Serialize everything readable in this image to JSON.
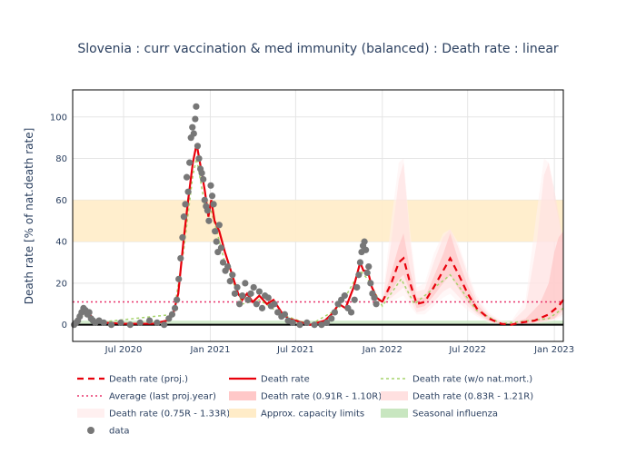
{
  "chart_data": {
    "type": "line",
    "title": "Slovenia : curr vaccination & med immunity (balanced) : Death rate : linear",
    "xlabel": "",
    "ylabel": "Death rate [% of nat.death rate]",
    "x_range": [
      "2020-03-15",
      "2023-01-20"
    ],
    "y_range": [
      -8,
      113
    ],
    "x_ticks": [
      {
        "date": "2020-07-01",
        "label": "Jul 2020"
      },
      {
        "date": "2021-01-01",
        "label": "Jan 2021"
      },
      {
        "date": "2021-07-01",
        "label": "Jul 2021"
      },
      {
        "date": "2022-01-01",
        "label": "Jan 2022"
      },
      {
        "date": "2022-07-01",
        "label": "Jul 2022"
      },
      {
        "date": "2023-01-01",
        "label": "Jan 2023"
      }
    ],
    "y_ticks": [
      0,
      20,
      40,
      60,
      80,
      100
    ],
    "grid": true,
    "capacity_band": [
      40,
      60
    ],
    "average_last_proj_year": 11,
    "colors": {
      "proj": "#e8000b",
      "rate": "#e8000b",
      "wo_nat": "#a5d36b",
      "average": "#e8336b",
      "band_091": "#ffc8c8",
      "band_083": "#ffe0e0",
      "band_075": "#fff0f0",
      "capacity": "#ffecc8",
      "influenza": "#c8e6c0",
      "data": "#777777"
    },
    "series": [
      {
        "name": "Death rate",
        "points": [
          [
            "2020-03-15",
            0
          ],
          [
            "2020-03-28",
            3
          ],
          [
            "2020-04-08",
            6
          ],
          [
            "2020-04-20",
            5
          ],
          [
            "2020-05-01",
            2
          ],
          [
            "2020-05-20",
            1
          ],
          [
            "2020-07-01",
            0.5
          ],
          [
            "2020-09-01",
            0.5
          ],
          [
            "2020-10-01",
            2
          ],
          [
            "2020-10-15",
            6
          ],
          [
            "2020-10-25",
            15
          ],
          [
            "2020-11-05",
            40
          ],
          [
            "2020-11-15",
            60
          ],
          [
            "2020-11-25",
            78
          ],
          [
            "2020-12-03",
            87
          ],
          [
            "2020-12-10",
            78
          ],
          [
            "2020-12-20",
            65
          ],
          [
            "2020-12-28",
            52
          ],
          [
            "2021-01-03",
            60
          ],
          [
            "2021-01-10",
            50
          ],
          [
            "2021-01-20",
            45
          ],
          [
            "2021-02-01",
            35
          ],
          [
            "2021-02-15",
            25
          ],
          [
            "2021-03-01",
            15
          ],
          [
            "2021-03-10",
            12
          ],
          [
            "2021-03-20",
            15
          ],
          [
            "2021-04-01",
            11
          ],
          [
            "2021-04-15",
            14
          ],
          [
            "2021-05-01",
            10
          ],
          [
            "2021-05-15",
            12
          ],
          [
            "2021-06-01",
            6
          ],
          [
            "2021-06-15",
            3
          ],
          [
            "2021-07-01",
            2
          ],
          [
            "2021-07-15",
            1
          ],
          [
            "2021-08-01",
            0
          ],
          [
            "2021-09-01",
            2
          ],
          [
            "2021-09-15",
            5
          ],
          [
            "2021-10-01",
            10
          ],
          [
            "2021-10-15",
            8
          ],
          [
            "2021-11-01",
            18
          ],
          [
            "2021-11-15",
            30
          ],
          [
            "2021-11-22",
            26
          ],
          [
            "2021-12-01",
            26
          ],
          [
            "2021-12-10",
            18
          ],
          [
            "2021-12-20",
            13
          ],
          [
            "2022-01-01",
            11
          ]
        ]
      },
      {
        "name": "Death rate (proj.)",
        "points": [
          [
            "2022-01-01",
            11
          ],
          [
            "2022-01-20",
            20
          ],
          [
            "2022-02-05",
            30
          ],
          [
            "2022-02-15",
            32
          ],
          [
            "2022-03-01",
            20
          ],
          [
            "2022-03-15",
            10
          ],
          [
            "2022-04-01",
            11
          ],
          [
            "2022-04-20",
            18
          ],
          [
            "2022-05-10",
            26
          ],
          [
            "2022-05-25",
            32
          ],
          [
            "2022-06-10",
            25
          ],
          [
            "2022-07-01",
            15
          ],
          [
            "2022-07-20",
            8
          ],
          [
            "2022-08-15",
            3
          ],
          [
            "2022-09-10",
            0.5
          ],
          [
            "2022-10-01",
            0
          ],
          [
            "2022-10-20",
            1
          ],
          [
            "2022-11-20",
            2
          ],
          [
            "2022-12-20",
            5
          ],
          [
            "2023-01-10",
            9
          ],
          [
            "2023-01-20",
            12
          ]
        ]
      },
      {
        "name": "Death rate (w/o nat.mort.)",
        "points": [
          [
            "2020-03-15",
            0
          ],
          [
            "2020-04-08",
            5
          ],
          [
            "2020-05-01",
            1
          ],
          [
            "2020-10-15",
            5
          ],
          [
            "2020-11-05",
            35
          ],
          [
            "2020-11-25",
            72
          ],
          [
            "2020-12-03",
            80
          ],
          [
            "2020-12-20",
            58
          ],
          [
            "2021-01-03",
            55
          ],
          [
            "2021-02-01",
            30
          ],
          [
            "2021-03-10",
            10
          ],
          [
            "2021-04-15",
            12
          ],
          [
            "2021-06-01",
            5
          ],
          [
            "2021-08-01",
            0
          ],
          [
            "2021-10-01",
            8
          ],
          [
            "2021-11-15",
            26
          ],
          [
            "2021-12-01",
            22
          ],
          [
            "2022-01-01",
            9
          ],
          [
            "2022-02-10",
            22
          ],
          [
            "2022-03-10",
            10
          ],
          [
            "2022-05-25",
            24
          ],
          [
            "2022-07-20",
            7
          ],
          [
            "2022-09-10",
            0.5
          ],
          [
            "2022-12-20",
            3
          ],
          [
            "2023-01-20",
            8
          ]
        ]
      }
    ],
    "bands": [
      {
        "name": "Death rate (0.91R - 1.10R)",
        "points": [
          [
            "2022-01-01",
            11,
            11
          ],
          [
            "2022-01-20",
            16,
            25
          ],
          [
            "2022-02-05",
            22,
            38
          ],
          [
            "2022-02-15",
            24,
            44
          ],
          [
            "2022-03-01",
            16,
            26
          ],
          [
            "2022-03-15",
            8,
            13
          ],
          [
            "2022-04-01",
            9,
            13
          ],
          [
            "2022-04-20",
            14,
            23
          ],
          [
            "2022-05-10",
            20,
            34
          ],
          [
            "2022-05-25",
            24,
            44
          ],
          [
            "2022-06-10",
            18,
            32
          ],
          [
            "2022-07-01",
            11,
            19
          ],
          [
            "2022-07-20",
            6,
            10
          ],
          [
            "2022-08-15",
            2,
            4
          ],
          [
            "2022-09-10",
            0.3,
            1
          ],
          [
            "2022-10-01",
            0,
            0.5
          ],
          [
            "2022-11-01",
            0.5,
            3
          ],
          [
            "2022-12-01",
            1.5,
            10
          ],
          [
            "2022-12-20",
            2.5,
            20
          ],
          [
            "2023-01-01",
            3,
            35
          ],
          [
            "2023-01-10",
            5,
            42
          ],
          [
            "2023-01-20",
            7,
            45
          ]
        ]
      },
      {
        "name": "Death rate (0.83R - 1.21R)",
        "points": [
          [
            "2022-01-01",
            11,
            11
          ],
          [
            "2022-01-20",
            13,
            40
          ],
          [
            "2022-02-05",
            16,
            70
          ],
          [
            "2022-02-15",
            18,
            78
          ],
          [
            "2022-03-01",
            12,
            40
          ],
          [
            "2022-03-15",
            6,
            16
          ],
          [
            "2022-04-01",
            7,
            17
          ],
          [
            "2022-04-20",
            11,
            30
          ],
          [
            "2022-05-10",
            16,
            42
          ],
          [
            "2022-05-25",
            18,
            46
          ],
          [
            "2022-06-10",
            14,
            38
          ],
          [
            "2022-07-01",
            9,
            24
          ],
          [
            "2022-07-20",
            5,
            12
          ],
          [
            "2022-08-15",
            1.5,
            5
          ],
          [
            "2022-09-10",
            0.2,
            1.5
          ],
          [
            "2022-10-01",
            0,
            1
          ],
          [
            "2022-11-01",
            0.4,
            8
          ],
          [
            "2022-11-25",
            1,
            40
          ],
          [
            "2022-12-10",
            1.5,
            72
          ],
          [
            "2022-12-20",
            2,
            78
          ],
          [
            "2023-01-01",
            3,
            65
          ],
          [
            "2023-01-20",
            5,
            40
          ]
        ]
      },
      {
        "name": "Death rate (0.75R - 1.33R)",
        "points": [
          [
            "2022-01-01",
            11,
            11
          ],
          [
            "2022-01-20",
            11,
            50
          ],
          [
            "2022-02-05",
            13,
            78
          ],
          [
            "2022-02-15",
            14,
            80
          ],
          [
            "2022-03-01",
            9,
            45
          ],
          [
            "2022-03-15",
            5,
            18
          ],
          [
            "2022-04-01",
            5,
            20
          ],
          [
            "2022-04-20",
            9,
            34
          ],
          [
            "2022-05-10",
            13,
            44
          ],
          [
            "2022-05-25",
            15,
            46
          ],
          [
            "2022-06-10",
            11,
            40
          ],
          [
            "2022-07-01",
            7,
            26
          ],
          [
            "2022-07-20",
            4,
            14
          ],
          [
            "2022-08-15",
            1,
            6
          ],
          [
            "2022-09-10",
            0.1,
            2
          ],
          [
            "2022-10-01",
            0,
            1.5
          ],
          [
            "2022-11-01",
            0.3,
            12
          ],
          [
            "2022-11-25",
            0.8,
            55
          ],
          [
            "2022-12-10",
            1.2,
            80
          ],
          [
            "2022-12-20",
            1.5,
            78
          ],
          [
            "2023-01-01",
            2,
            60
          ],
          [
            "2023-01-20",
            4,
            40
          ]
        ]
      }
    ],
    "data_points": [
      [
        "2020-03-18",
        0
      ],
      [
        "2020-03-22",
        1
      ],
      [
        "2020-03-26",
        2
      ],
      [
        "2020-03-30",
        4
      ],
      [
        "2020-04-03",
        6
      ],
      [
        "2020-04-07",
        8
      ],
      [
        "2020-04-11",
        7
      ],
      [
        "2020-04-15",
        5
      ],
      [
        "2020-04-19",
        6
      ],
      [
        "2020-04-23",
        3
      ],
      [
        "2020-04-27",
        2
      ],
      [
        "2020-05-02",
        1
      ],
      [
        "2020-05-10",
        2
      ],
      [
        "2020-05-20",
        1
      ],
      [
        "2020-06-05",
        0
      ],
      [
        "2020-06-25",
        1
      ],
      [
        "2020-07-15",
        0
      ],
      [
        "2020-08-05",
        1
      ],
      [
        "2020-08-25",
        2
      ],
      [
        "2020-09-10",
        1
      ],
      [
        "2020-09-25",
        0
      ],
      [
        "2020-10-05",
        3
      ],
      [
        "2020-10-12",
        5
      ],
      [
        "2020-10-18",
        8
      ],
      [
        "2020-10-22",
        12
      ],
      [
        "2020-10-26",
        22
      ],
      [
        "2020-10-30",
        32
      ],
      [
        "2020-11-03",
        42
      ],
      [
        "2020-11-06",
        52
      ],
      [
        "2020-11-09",
        58
      ],
      [
        "2020-11-12",
        71
      ],
      [
        "2020-11-15",
        64
      ],
      [
        "2020-11-18",
        78
      ],
      [
        "2020-11-21",
        90
      ],
      [
        "2020-11-24",
        95
      ],
      [
        "2020-11-27",
        92
      ],
      [
        "2020-11-30",
        99
      ],
      [
        "2020-12-02",
        105
      ],
      [
        "2020-12-05",
        86
      ],
      [
        "2020-12-08",
        80
      ],
      [
        "2020-12-11",
        75
      ],
      [
        "2020-12-14",
        73
      ],
      [
        "2020-12-17",
        70
      ],
      [
        "2020-12-20",
        60
      ],
      [
        "2020-12-23",
        57
      ],
      [
        "2020-12-26",
        55
      ],
      [
        "2020-12-29",
        50
      ],
      [
        "2021-01-02",
        67
      ],
      [
        "2021-01-05",
        62
      ],
      [
        "2021-01-08",
        58
      ],
      [
        "2021-01-11",
        45
      ],
      [
        "2021-01-14",
        40
      ],
      [
        "2021-01-17",
        35
      ],
      [
        "2021-01-20",
        48
      ],
      [
        "2021-01-24",
        37
      ],
      [
        "2021-01-28",
        30
      ],
      [
        "2021-02-02",
        26
      ],
      [
        "2021-02-07",
        28
      ],
      [
        "2021-02-12",
        21
      ],
      [
        "2021-02-17",
        24
      ],
      [
        "2021-02-22",
        15
      ],
      [
        "2021-02-27",
        18
      ],
      [
        "2021-03-04",
        10
      ],
      [
        "2021-03-10",
        14
      ],
      [
        "2021-03-16",
        20
      ],
      [
        "2021-03-22",
        12
      ],
      [
        "2021-03-28",
        15
      ],
      [
        "2021-04-03",
        18
      ],
      [
        "2021-04-09",
        10
      ],
      [
        "2021-04-15",
        16
      ],
      [
        "2021-04-21",
        8
      ],
      [
        "2021-04-27",
        14
      ],
      [
        "2021-05-04",
        13
      ],
      [
        "2021-05-10",
        9
      ],
      [
        "2021-05-17",
        10
      ],
      [
        "2021-05-24",
        6
      ],
      [
        "2021-06-01",
        4
      ],
      [
        "2021-06-08",
        5
      ],
      [
        "2021-06-15",
        2
      ],
      [
        "2021-06-25",
        1
      ],
      [
        "2021-07-10",
        0
      ],
      [
        "2021-07-25",
        1
      ],
      [
        "2021-08-10",
        0
      ],
      [
        "2021-08-25",
        0
      ],
      [
        "2021-09-05",
        1
      ],
      [
        "2021-09-15",
        3
      ],
      [
        "2021-09-22",
        6
      ],
      [
        "2021-09-29",
        10
      ],
      [
        "2021-10-06",
        12
      ],
      [
        "2021-10-13",
        14
      ],
      [
        "2021-10-20",
        8
      ],
      [
        "2021-10-27",
        6
      ],
      [
        "2021-11-03",
        12
      ],
      [
        "2021-11-08",
        18
      ],
      [
        "2021-11-12",
        24
      ],
      [
        "2021-11-15",
        30
      ],
      [
        "2021-11-18",
        35
      ],
      [
        "2021-11-21",
        38
      ],
      [
        "2021-11-24",
        40
      ],
      [
        "2021-11-27",
        36
      ],
      [
        "2021-11-30",
        25
      ],
      [
        "2021-12-03",
        28
      ],
      [
        "2021-12-07",
        20
      ],
      [
        "2021-12-11",
        15
      ],
      [
        "2021-12-15",
        13
      ],
      [
        "2021-12-19",
        10
      ]
    ],
    "legend": [
      {
        "label": "Death rate (proj.)",
        "kind": "dash-line"
      },
      {
        "label": "Death rate",
        "kind": "solid-line"
      },
      {
        "label": "Death rate (w/o nat.mort.)",
        "kind": "dot-line"
      },
      {
        "label": "Average (last proj.year)",
        "kind": "dot-line-pink"
      },
      {
        "label": "Death rate (0.91R - 1.10R)",
        "kind": "band-091"
      },
      {
        "label": "Death rate (0.83R - 1.21R)",
        "kind": "band-083"
      },
      {
        "label": "Death rate (0.75R - 1.33R)",
        "kind": "band-075"
      },
      {
        "label": "Approx. capacity limits",
        "kind": "band-capacity"
      },
      {
        "label": "Seasonal influenza",
        "kind": "band-influenza"
      },
      {
        "label": "data",
        "kind": "marker"
      }
    ]
  }
}
